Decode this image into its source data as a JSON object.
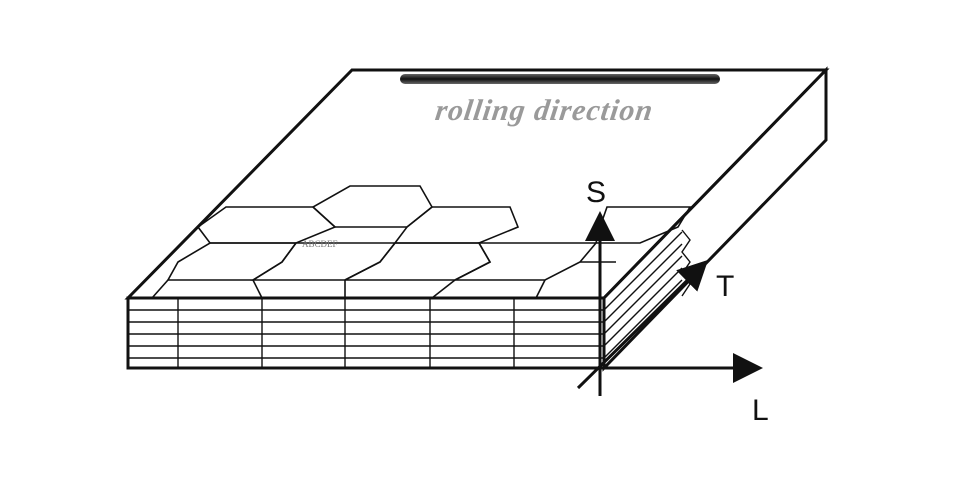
{
  "diagram": {
    "axes": {
      "s_label": "S",
      "t_label": "T",
      "l_label": "L"
    },
    "top_face": {
      "faint_caption": "rolling direction",
      "faint_small_text": "ABCDEF"
    },
    "colors": {
      "stroke": "#111111",
      "background": "#ffffff",
      "faint_text": "#9a9a9a"
    }
  }
}
